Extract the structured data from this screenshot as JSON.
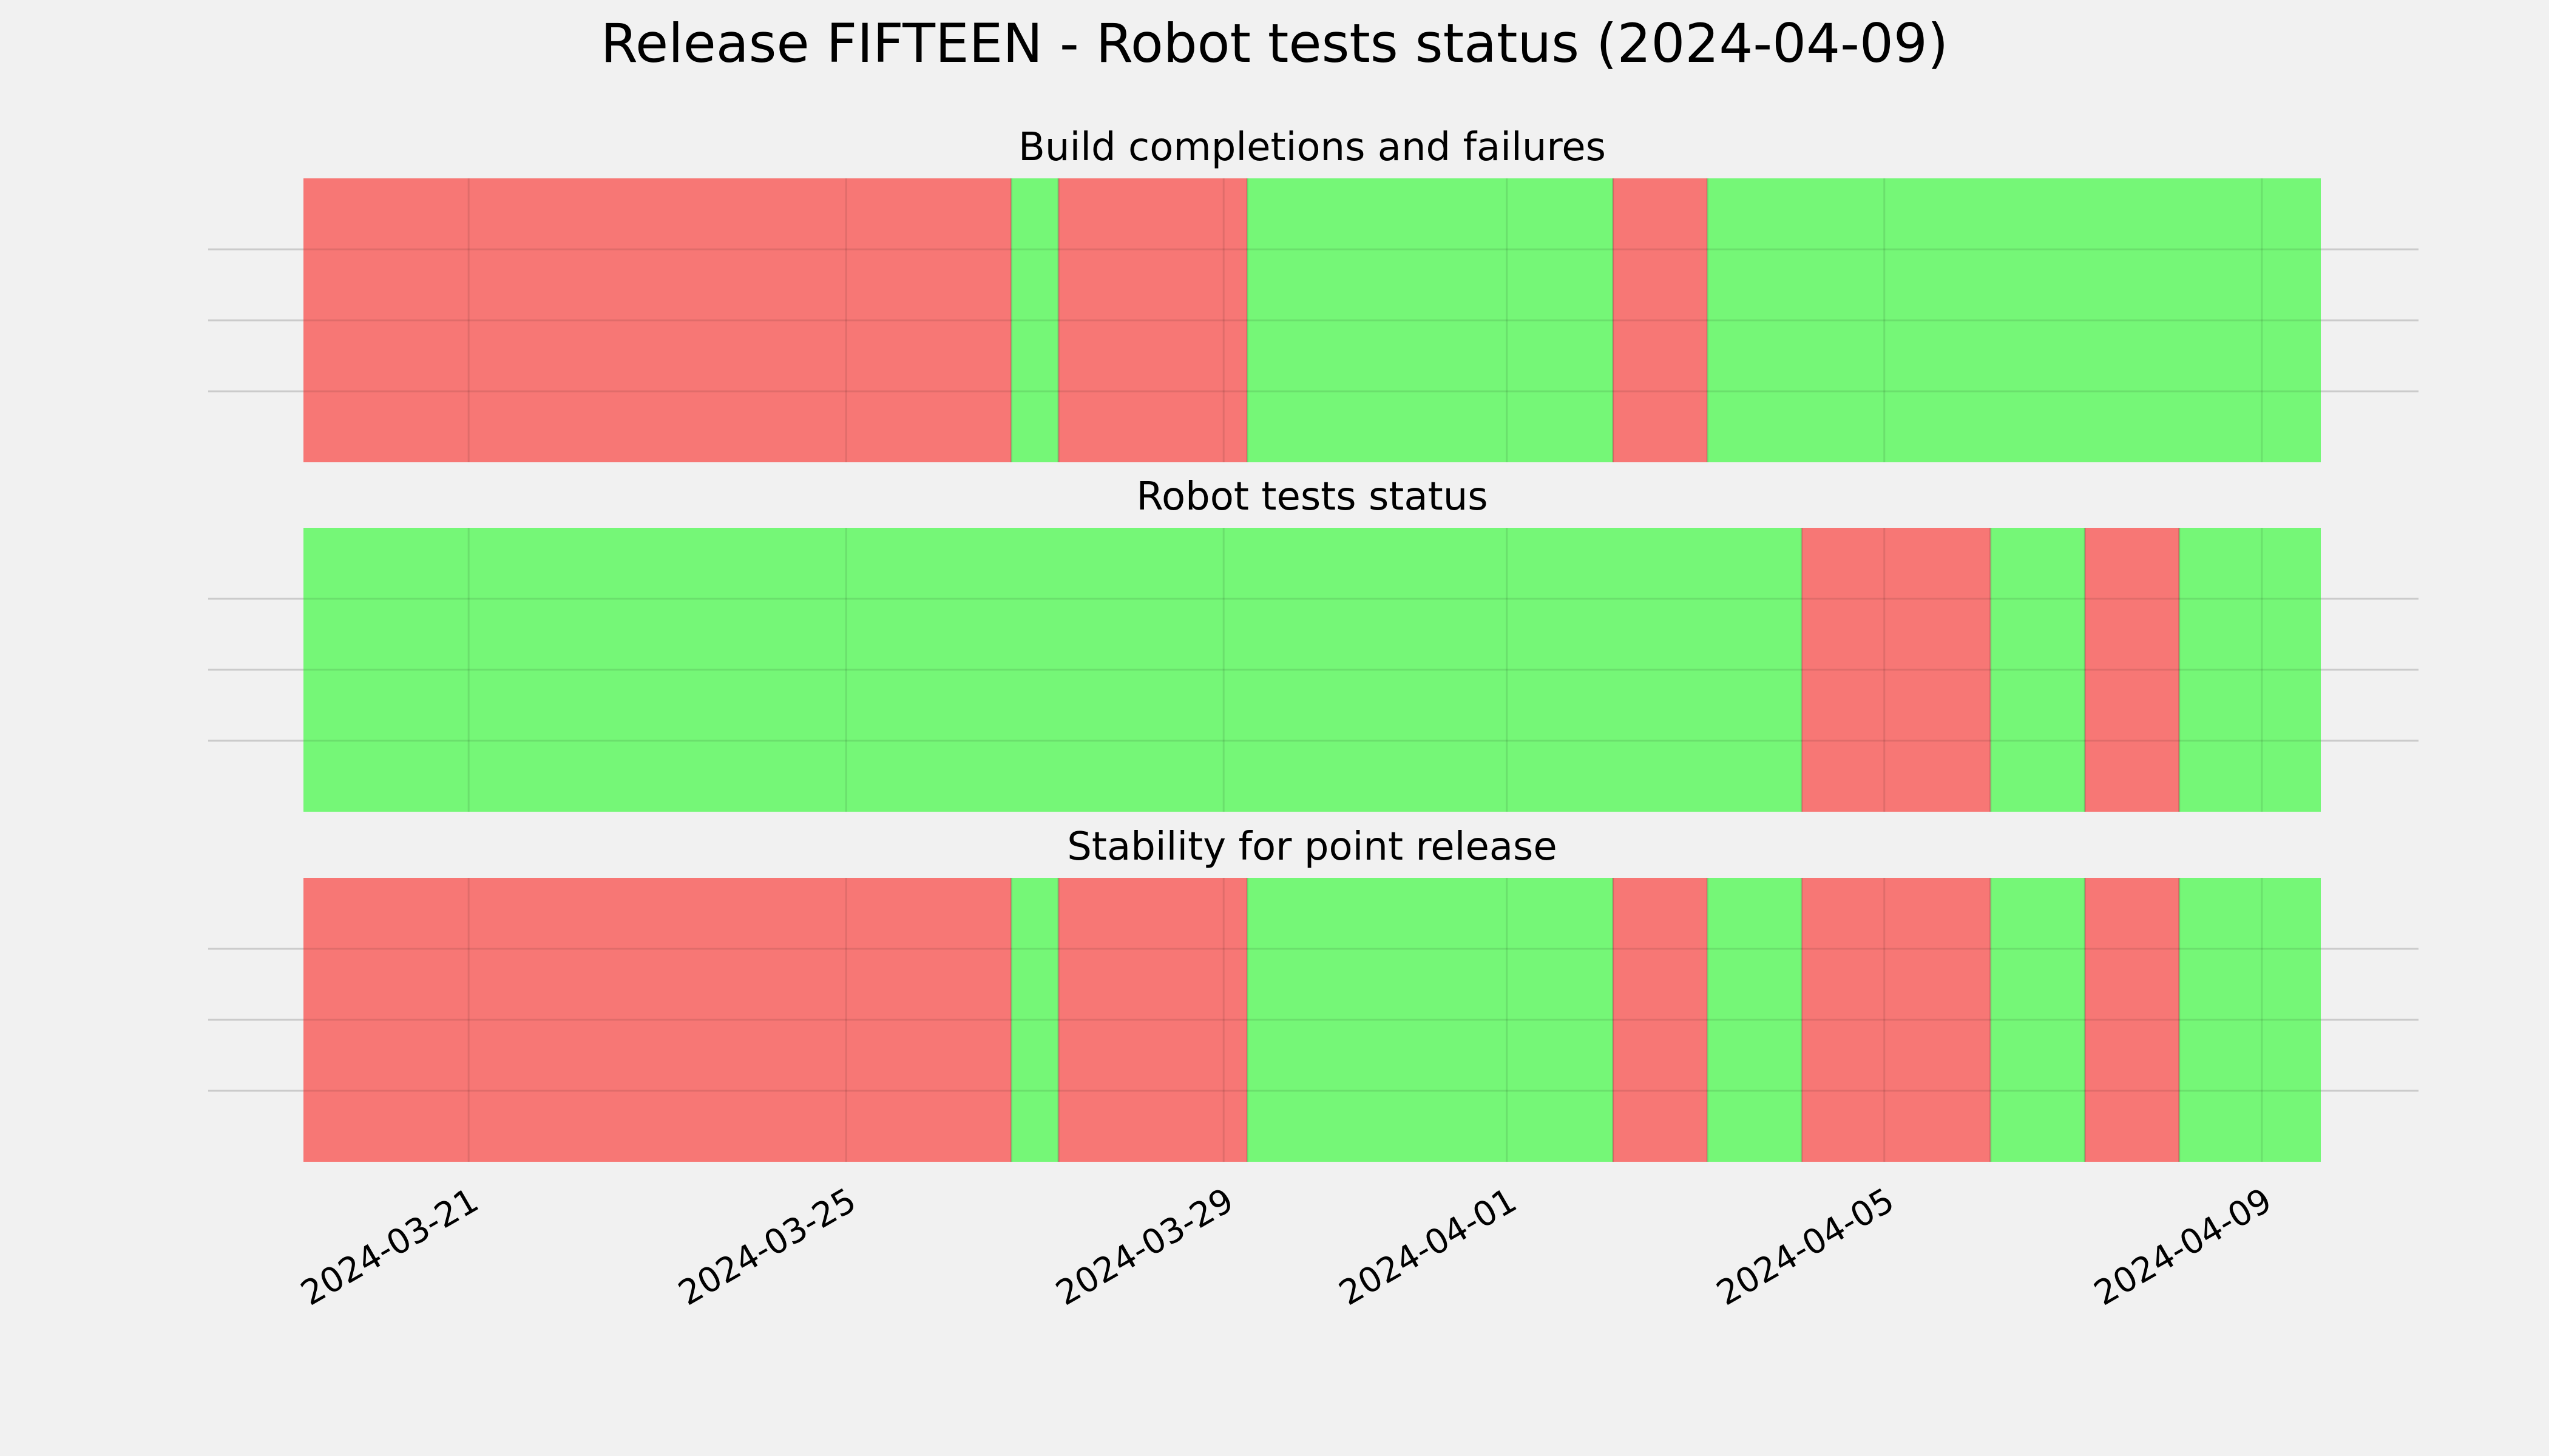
{
  "chart_data": {
    "type": "timeline",
    "title": "Release FIFTEEN - Robot tests status (2024-04-09)",
    "x_range": [
      "2024-03-19T06:00",
      "2024-04-09T15:00"
    ],
    "x_ticks": [
      "2024-03-21",
      "2024-03-25",
      "2024-03-29",
      "2024-04-01",
      "2024-04-05",
      "2024-04-09"
    ],
    "status_colors": {
      "fail": "#f77775",
      "pass": "#75f777"
    },
    "grid": true,
    "panels": [
      {
        "title": "Build completions and failures",
        "segments": [
          {
            "start": "2024-03-19T06:00",
            "end": "2024-03-26T18:00",
            "status": "fail"
          },
          {
            "start": "2024-03-26T18:00",
            "end": "2024-03-27T06:00",
            "status": "pass"
          },
          {
            "start": "2024-03-27T06:00",
            "end": "2024-03-29T06:00",
            "status": "fail"
          },
          {
            "start": "2024-03-29T06:00",
            "end": "2024-04-02T03:00",
            "status": "pass"
          },
          {
            "start": "2024-04-02T03:00",
            "end": "2024-04-03T03:00",
            "status": "fail"
          },
          {
            "start": "2024-04-03T03:00",
            "end": "2024-04-09T15:00",
            "status": "pass"
          }
        ]
      },
      {
        "title": "Robot tests status",
        "segments": [
          {
            "start": "2024-03-19T06:00",
            "end": "2024-04-04T03:00",
            "status": "pass"
          },
          {
            "start": "2024-04-04T03:00",
            "end": "2024-04-06T03:00",
            "status": "fail"
          },
          {
            "start": "2024-04-06T03:00",
            "end": "2024-04-07T03:00",
            "status": "pass"
          },
          {
            "start": "2024-04-07T03:00",
            "end": "2024-04-08T03:00",
            "status": "fail"
          },
          {
            "start": "2024-04-08T03:00",
            "end": "2024-04-09T15:00",
            "status": "pass"
          }
        ]
      },
      {
        "title": "Stability for point release",
        "segments": [
          {
            "start": "2024-03-19T06:00",
            "end": "2024-03-26T18:00",
            "status": "fail"
          },
          {
            "start": "2024-03-26T18:00",
            "end": "2024-03-27T06:00",
            "status": "pass"
          },
          {
            "start": "2024-03-27T06:00",
            "end": "2024-03-29T06:00",
            "status": "fail"
          },
          {
            "start": "2024-03-29T06:00",
            "end": "2024-04-02T03:00",
            "status": "pass"
          },
          {
            "start": "2024-04-02T03:00",
            "end": "2024-04-03T03:00",
            "status": "fail"
          },
          {
            "start": "2024-04-03T03:00",
            "end": "2024-04-04T03:00",
            "status": "pass"
          },
          {
            "start": "2024-04-04T03:00",
            "end": "2024-04-06T03:00",
            "status": "fail"
          },
          {
            "start": "2024-04-06T03:00",
            "end": "2024-04-07T03:00",
            "status": "pass"
          },
          {
            "start": "2024-04-07T03:00",
            "end": "2024-04-08T03:00",
            "status": "fail"
          },
          {
            "start": "2024-04-08T03:00",
            "end": "2024-04-09T15:00",
            "status": "pass"
          }
        ]
      }
    ]
  }
}
